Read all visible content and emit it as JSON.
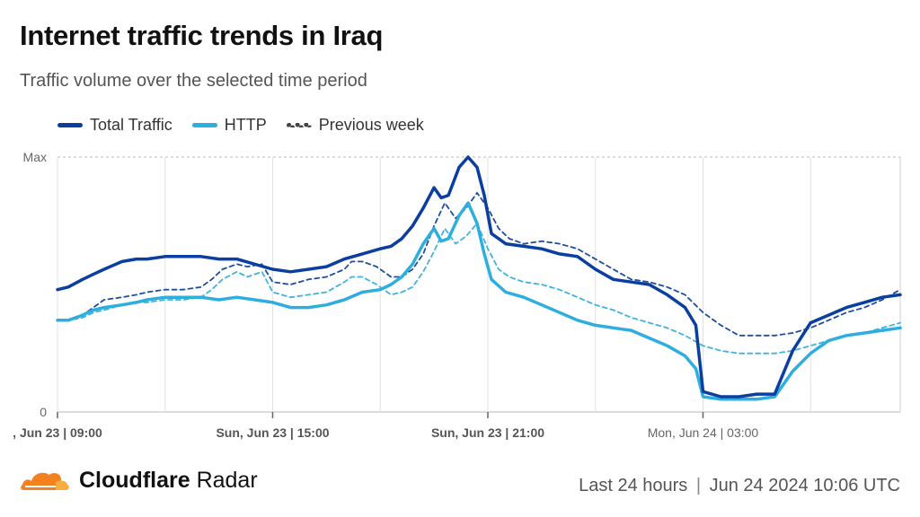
{
  "header": {
    "title": "Internet traffic trends in Iraq",
    "subtitle": "Traffic volume over the selected time period"
  },
  "legend": {
    "total": "Total Traffic",
    "http": "HTTP",
    "previous": "Previous week"
  },
  "colors": {
    "total": "#0a3ea0",
    "http": "#2eaede",
    "prev_total": "#1d4f9e",
    "prev_http": "#3fb3dd",
    "grid": "#dddddd",
    "logo_orange": "#f48120",
    "logo_light": "#faad3f"
  },
  "footer": {
    "brand_bold": "Cloudflare",
    "brand_light": " Radar",
    "range": "Last 24 hours",
    "separator": "|",
    "timestamp": "Jun 24 2024 10:06 UTC"
  },
  "chart_data": {
    "type": "line",
    "x_unit": "hours from start",
    "xlim": [
      0,
      23.5
    ],
    "ylim": [
      0,
      100
    ],
    "y_ticks": [
      {
        "value": 0,
        "label": "0"
      },
      {
        "value": 100,
        "label": "Max"
      }
    ],
    "x_ticks": [
      {
        "value": 0,
        "label": ", Jun 23 | 09:00",
        "bold": true
      },
      {
        "value": 6,
        "label": "Sun, Jun 23 | 15:00",
        "bold": true
      },
      {
        "value": 12,
        "label": "Sun, Jun 23 | 21:00",
        "bold": true
      },
      {
        "value": 18,
        "label": "Mon, Jun 24 | 03:00",
        "bold": false
      }
    ],
    "minor_gridlines": [
      3,
      9,
      15,
      21
    ],
    "series": [
      {
        "name": "Total Traffic",
        "key": "total",
        "style": "solid",
        "x": [
          0,
          0.3,
          0.7,
          1,
          1.3,
          1.8,
          2.2,
          2.5,
          3,
          3.5,
          4,
          4.5,
          5,
          5.5,
          6,
          6.5,
          7,
          7.5,
          8,
          8.5,
          9,
          9.3,
          9.6,
          9.9,
          10.2,
          10.5,
          10.7,
          10.9,
          11.2,
          11.45,
          11.7,
          11.9,
          12.1,
          12.5,
          13,
          13.5,
          14,
          14.5,
          15,
          15.5,
          16,
          16.5,
          17,
          17.5,
          17.8,
          18,
          18.5,
          19,
          19.5,
          20,
          20.5,
          21,
          21.5,
          22,
          22.5,
          23,
          23.5
        ],
        "values": [
          48,
          49,
          52,
          54,
          56,
          59,
          60,
          60,
          61,
          61,
          61,
          60,
          60,
          58,
          56,
          55,
          56,
          57,
          60,
          62,
          64,
          65,
          68,
          73,
          80,
          88,
          84,
          85,
          96,
          100,
          96,
          85,
          70,
          66,
          65,
          64,
          62,
          61,
          56,
          52,
          51,
          50,
          46,
          41,
          34,
          8,
          6,
          6,
          7,
          7,
          24,
          35,
          38,
          41,
          43,
          45,
          46
        ]
      },
      {
        "name": "HTTP",
        "key": "http",
        "style": "solid",
        "x": [
          0,
          0.3,
          0.7,
          1,
          1.3,
          1.8,
          2.2,
          2.5,
          3,
          3.5,
          4,
          4.5,
          5,
          5.5,
          6,
          6.5,
          7,
          7.5,
          8,
          8.5,
          9,
          9.3,
          9.6,
          9.9,
          10.2,
          10.5,
          10.7,
          10.9,
          11.2,
          11.45,
          11.7,
          11.9,
          12.1,
          12.5,
          13,
          13.5,
          14,
          14.5,
          15,
          15.5,
          16,
          16.5,
          17,
          17.5,
          17.8,
          18,
          18.5,
          19,
          19.5,
          20,
          20.5,
          21,
          21.5,
          22,
          22.5,
          23,
          23.5
        ],
        "values": [
          36,
          36,
          38,
          40,
          41,
          42,
          43,
          44,
          45,
          45,
          45,
          44,
          45,
          44,
          43,
          41,
          41,
          42,
          44,
          47,
          48,
          50,
          53,
          58,
          66,
          72,
          67,
          68,
          77,
          82,
          74,
          62,
          52,
          47,
          45,
          42,
          39,
          36,
          34,
          33,
          32,
          29,
          26,
          22,
          17,
          6,
          5,
          5,
          5,
          6,
          16,
          23,
          28,
          30,
          31,
          32,
          33
        ]
      },
      {
        "name": "Previous week · Total Traffic",
        "key": "prev_total",
        "style": "dashed",
        "x": [
          0,
          0.3,
          0.7,
          1,
          1.3,
          1.8,
          2.2,
          2.5,
          3,
          3.5,
          4,
          4.3,
          4.6,
          5,
          5.3,
          5.7,
          6,
          6.5,
          7,
          7.5,
          8,
          8.2,
          8.5,
          8.9,
          9.3,
          9.6,
          9.9,
          10.2,
          10.5,
          10.8,
          11.1,
          11.4,
          11.7,
          12,
          12.3,
          12.6,
          13,
          13.5,
          14,
          14.5,
          15,
          15.5,
          16,
          16.5,
          17,
          17.5,
          18,
          18.5,
          19,
          19.5,
          20,
          20.5,
          21,
          21.5,
          22,
          22.5,
          23,
          23.5
        ],
        "values": [
          36,
          36,
          38,
          41,
          44,
          45,
          46,
          47,
          48,
          48,
          49,
          52,
          56,
          58,
          57,
          58,
          51,
          50,
          52,
          53,
          56,
          59,
          59,
          57,
          53,
          53,
          56,
          62,
          73,
          82,
          76,
          80,
          86,
          80,
          72,
          68,
          66,
          67,
          66,
          64,
          60,
          56,
          52,
          51,
          49,
          46,
          39,
          34,
          30,
          30,
          30,
          31,
          33,
          36,
          39,
          41,
          44,
          48
        ]
      },
      {
        "name": "Previous week · HTTP",
        "key": "prev_http",
        "style": "dashed",
        "x": [
          0,
          0.3,
          0.7,
          1,
          1.3,
          1.8,
          2.2,
          2.5,
          3,
          3.5,
          4,
          4.3,
          4.6,
          5,
          5.3,
          5.7,
          6,
          6.5,
          7,
          7.5,
          8,
          8.2,
          8.5,
          8.9,
          9.3,
          9.6,
          9.9,
          10.2,
          10.5,
          10.8,
          11.1,
          11.4,
          11.7,
          12,
          12.3,
          12.6,
          13,
          13.5,
          14,
          14.5,
          15,
          15.5,
          16,
          16.5,
          17,
          17.5,
          18,
          18.5,
          19,
          19.5,
          20,
          20.5,
          21,
          21.5,
          22,
          22.5,
          23,
          23.5
        ],
        "values": [
          36,
          36,
          37,
          39,
          40,
          42,
          43,
          43,
          44,
          44,
          45,
          48,
          52,
          55,
          53,
          55,
          47,
          45,
          46,
          47,
          51,
          53,
          53,
          50,
          46,
          47,
          49,
          55,
          63,
          72,
          66,
          69,
          74,
          64,
          56,
          53,
          51,
          50,
          48,
          45,
          42,
          40,
          37,
          35,
          33,
          30,
          26,
          24,
          23,
          23,
          23,
          24,
          26,
          28,
          30,
          31,
          33,
          35
        ]
      }
    ]
  }
}
